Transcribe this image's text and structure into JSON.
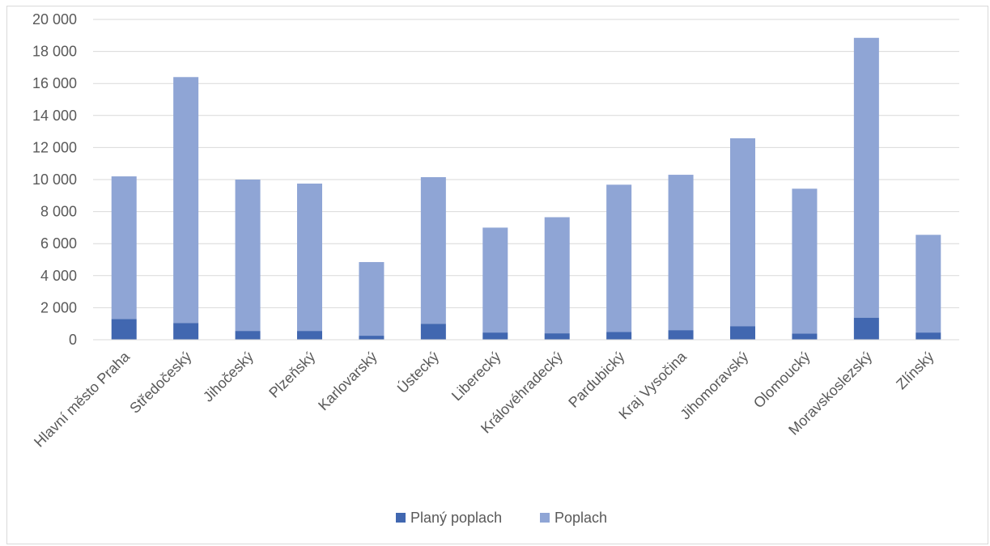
{
  "chart_data": {
    "type": "bar",
    "stacked": true,
    "categories": [
      "Hlavní město Praha",
      "Středočeský",
      "Jihočeský",
      "Plzeňský",
      "Karlovarský",
      "Ústecký",
      "Liberecký",
      "Královéhradecký",
      "Pardubický",
      "Kraj Vysočina",
      "Jihomoravský",
      "Olomoucký",
      "Moravskoslezský",
      "Zlínský"
    ],
    "series": [
      {
        "name": "Planý poplach",
        "color": "#4167b0",
        "values": [
          1300,
          1050,
          550,
          550,
          250,
          1000,
          450,
          400,
          480,
          600,
          850,
          380,
          1380,
          450
        ]
      },
      {
        "name": "Poplach",
        "color": "#8fa5d5",
        "values": [
          8900,
          15350,
          9450,
          9200,
          4600,
          9150,
          6550,
          7250,
          9200,
          9700,
          11730,
          9050,
          17470,
          6100
        ]
      }
    ],
    "ylim": [
      0,
      20000
    ],
    "yticks": [
      0,
      2000,
      4000,
      6000,
      8000,
      10000,
      12000,
      14000,
      16000,
      18000,
      20000
    ],
    "ytick_labels": [
      "0",
      "2 000",
      "4 000",
      "6 000",
      "8 000",
      "10 000",
      "12 000",
      "14 000",
      "16 000",
      "18 000",
      "20 000"
    ],
    "grid": true,
    "legend": "bottom"
  }
}
